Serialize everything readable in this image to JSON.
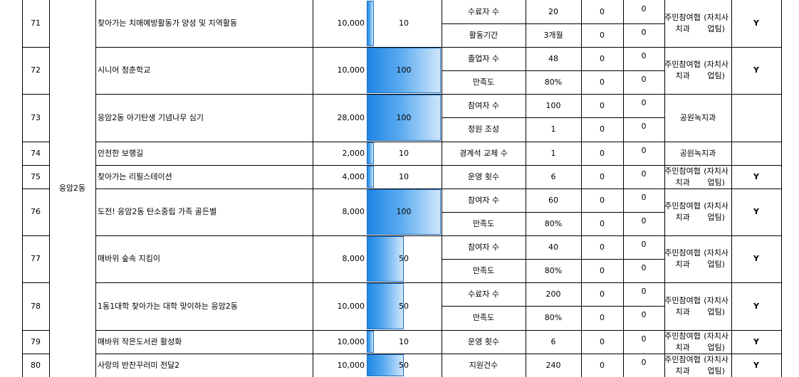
{
  "district": "응암2동",
  "rows": [
    {
      "no": "71",
      "name": "찾아가는 치매예방활동가 양성 및 지역활동",
      "budget": "10,000",
      "progress": 10,
      "progress_label": "10",
      "dept": [
        "주민참여협치과",
        "(자치사업팀)"
      ],
      "flag": "Y",
      "indicators": [
        {
          "label": "수료자 수",
          "target": "20",
          "a": "0",
          "b": "0"
        },
        {
          "label": "활동기간",
          "target": "3개월",
          "a": "0",
          "b": "0"
        }
      ]
    },
    {
      "no": "72",
      "name": "시니어 청춘학교",
      "budget": "10,000",
      "progress": 100,
      "progress_label": "100",
      "dept": [
        "주민참여협치과",
        "(자치사업팀)"
      ],
      "flag": "Y",
      "indicators": [
        {
          "label": "졸업자 수",
          "target": "48",
          "a": "0",
          "b": "0"
        },
        {
          "label": "만족도",
          "target": "80%",
          "a": "0",
          "b": "0"
        }
      ]
    },
    {
      "no": "73",
      "name": "응암2동 아기탄생 기념나무 심기",
      "budget": "28,000",
      "progress": 100,
      "progress_label": "100",
      "dept": [
        "공원녹지과"
      ],
      "flag": "",
      "indicators": [
        {
          "label": "참여자 수",
          "target": "100",
          "a": "0",
          "b": "0"
        },
        {
          "label": "정원 조성",
          "target": "1",
          "a": "0",
          "b": "0"
        }
      ]
    },
    {
      "no": "74",
      "name": "안전한 보행길",
      "budget": "2,000",
      "progress": 10,
      "progress_label": "10",
      "dept": [
        "공원녹지과"
      ],
      "flag": "",
      "indicators": [
        {
          "label": "경계석 교체 수",
          "target": "1",
          "a": "0",
          "b": "0"
        }
      ]
    },
    {
      "no": "75",
      "name": "찾아가는 리필스테이션",
      "budget": "4,000",
      "progress": 10,
      "progress_label": "10",
      "dept": [
        "주민참여협치과",
        "(자치사업팀)"
      ],
      "flag": "Y",
      "indicators": [
        {
          "label": "운영 횟수",
          "target": "6",
          "a": "0",
          "b": "0"
        }
      ]
    },
    {
      "no": "76",
      "name": "도전! 응암2동 탄소중립 가족 골든벨",
      "budget": "8,000",
      "progress": 100,
      "progress_label": "100",
      "dept": [
        "주민참여협치과",
        "(자치사업팀)"
      ],
      "flag": "Y",
      "indicators": [
        {
          "label": "참여자 수",
          "target": "60",
          "a": "0",
          "b": "0"
        },
        {
          "label": "만족도",
          "target": "80%",
          "a": "0",
          "b": "0"
        }
      ]
    },
    {
      "no": "77",
      "name": "매바위 숲속 지킴이",
      "budget": "8,000",
      "progress": 50,
      "progress_label": "50",
      "dept": [
        "주민참여협치과",
        "(자치사업팀)"
      ],
      "flag": "Y",
      "indicators": [
        {
          "label": "참여자 수",
          "target": "40",
          "a": "0",
          "b": "0"
        },
        {
          "label": "만족도",
          "target": "80%",
          "a": "0",
          "b": "0"
        }
      ]
    },
    {
      "no": "78",
      "name": "1동1대학 찾아가는 대학 맞이하는 응암2동",
      "budget": "10,000",
      "progress": 50,
      "progress_label": "50",
      "dept": [
        "주민참여협치과",
        "(자치사업팀)"
      ],
      "flag": "Y",
      "indicators": [
        {
          "label": "수료자 수",
          "target": "200",
          "a": "0",
          "b": "0"
        },
        {
          "label": "만족도",
          "target": "80%",
          "a": "0",
          "b": "0"
        }
      ]
    },
    {
      "no": "79",
      "name": "매바위 작은도서관 활성화",
      "budget": "10,000",
      "progress": 10,
      "progress_label": "10",
      "dept": [
        "주민참여협치과",
        "(자치사업팀)"
      ],
      "flag": "Y",
      "indicators": [
        {
          "label": "운영 횟수",
          "target": "6",
          "a": "0",
          "b": "0"
        }
      ]
    },
    {
      "no": "80",
      "name": "사랑의 반찬꾸러미 전달2",
      "budget": "10,000",
      "progress": 50,
      "progress_label": "50",
      "dept": [
        "주민참여협치과",
        "(자치사업팀)"
      ],
      "flag": "Y",
      "indicators": [
        {
          "label": "지원건수",
          "target": "240",
          "a": "0",
          "b": "0"
        }
      ]
    }
  ]
}
